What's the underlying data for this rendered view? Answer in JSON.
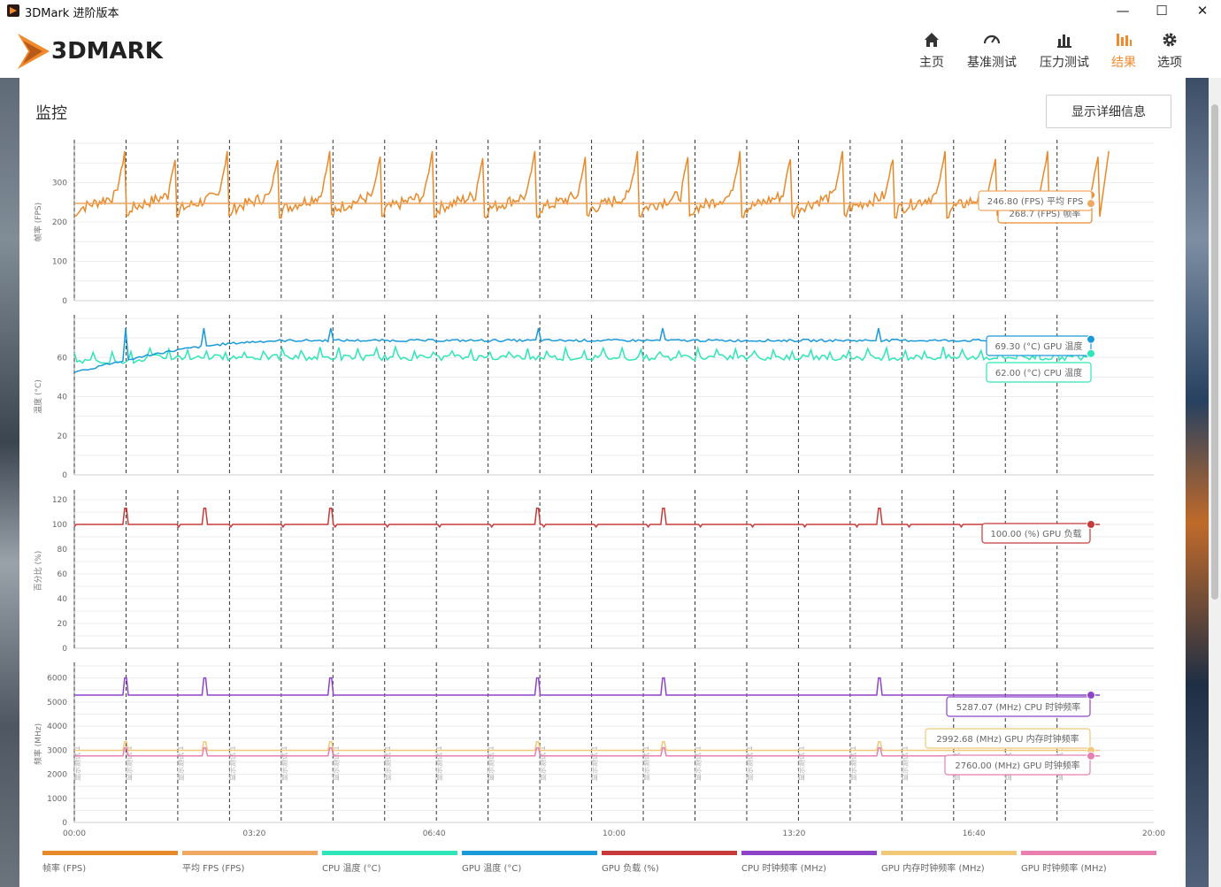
{
  "window": {
    "title": "3DMark 进阶版本",
    "minimize": "—",
    "maximize": "☐",
    "close": "✕"
  },
  "logo": {
    "text": "3DMARK"
  },
  "nav": [
    {
      "label": "主页",
      "icon": "home-icon"
    },
    {
      "label": "基准测试",
      "icon": "gauge-icon"
    },
    {
      "label": "压力测试",
      "icon": "bar-chart-icon"
    },
    {
      "label": "结果",
      "icon": "results-icon",
      "active": true
    },
    {
      "label": "选项",
      "icon": "gear-icon"
    }
  ],
  "panel": {
    "title": "监控",
    "detail_button": "显示详细信息"
  },
  "colors": {
    "fps": "#e8892a",
    "avg_fps": "#f0a860",
    "cpu_temp": "#2ee6b8",
    "gpu_temp": "#1a9ad8",
    "gpu_load": "#c83a3a",
    "cpu_clock": "#8e44c8",
    "gpu_mem_clock": "#f0c878",
    "gpu_clock": "#e87fb0"
  },
  "markers": {
    "label": "显示测试 1",
    "count": 20
  },
  "chart_data": {
    "type": "line",
    "x_ticks": [
      "00:00",
      "03:20",
      "06:40",
      "10:00",
      "13:20",
      "16:40",
      "20:00"
    ],
    "xlim_seconds": [
      0,
      1200
    ],
    "panels": [
      {
        "ylabel": "帧率 (FPS)",
        "y_ticks": [
          0,
          100,
          200,
          300
        ],
        "ylim": [
          0,
          400
        ],
        "series": [
          {
            "name": "帧率 (FPS)",
            "pattern": "sawtooth",
            "min": 210,
            "peak": 380,
            "period_s": 57,
            "base": 240
          },
          {
            "name": "平均 FPS (FPS)",
            "value": 246.8
          }
        ],
        "callouts": [
          {
            "text": "246.80 (FPS) 平均 FPS",
            "series": "avg_fps"
          },
          {
            "text": "268.7 (FPS) 帧率",
            "series": "fps"
          }
        ]
      },
      {
        "ylabel": "温度 (°C)",
        "y_ticks": [
          0,
          20,
          40,
          60
        ],
        "ylim": [
          0,
          80
        ],
        "series": [
          {
            "name": "GPU 温度 (°C)",
            "start": 52,
            "end": 69.3,
            "spike": 75
          },
          {
            "name": "CPU 温度 (°C)",
            "start": 59,
            "end": 62,
            "range": [
              60,
              71
            ]
          }
        ],
        "callouts": [
          {
            "text": "69.30 (°C) GPU 温度",
            "series": "gpu_temp"
          },
          {
            "text": "62.00 (°C) CPU 温度",
            "series": "cpu_temp"
          }
        ]
      },
      {
        "ylabel": "百分比 (%)",
        "y_ticks": [
          0,
          20,
          40,
          60,
          80,
          100,
          120
        ],
        "ylim": [
          0,
          125
        ],
        "series": [
          {
            "name": "GPU 负载 (%)",
            "value": 100,
            "spike": 113
          }
        ],
        "callouts": [
          {
            "text": "100.00 (%) GPU 负载",
            "series": "gpu_load"
          }
        ]
      },
      {
        "ylabel": "频率 (MHz)",
        "y_ticks": [
          0,
          1000,
          2000,
          3000,
          4000,
          5000,
          6000
        ],
        "ylim": [
          0,
          6500
        ],
        "series": [
          {
            "name": "CPU 时钟频率 (MHz)",
            "value": 5287.07,
            "spike": 6000
          },
          {
            "name": "GPU 内存时钟频率 (MHz)",
            "value": 2992.68,
            "spike": 3350
          },
          {
            "name": "GPU 时钟频率 (MHz)",
            "value": 2760.0,
            "spike": 3100
          }
        ],
        "callouts": [
          {
            "text": "5287.07 (MHz) CPU 时钟频率",
            "series": "cpu_clock"
          },
          {
            "text": "2992.68 (MHz) GPU 内存时钟频率",
            "series": "gpu_mem_clock"
          },
          {
            "text": "2760.00 (MHz) GPU 时钟频率",
            "series": "gpu_clock"
          }
        ]
      }
    ]
  },
  "legend": [
    {
      "label": "帧率 (FPS)",
      "color": "#e8892a"
    },
    {
      "label": "平均 FPS (FPS)",
      "color": "#f0a860"
    },
    {
      "label": "CPU 温度 (°C)",
      "color": "#2ee6b8"
    },
    {
      "label": "GPU 温度 (°C)",
      "color": "#1a9ad8"
    },
    {
      "label": "GPU 负载 (%)",
      "color": "#c83a3a"
    },
    {
      "label": "CPU 时钟频率 (MHz)",
      "color": "#8e44c8"
    },
    {
      "label": "GPU 内存时钟频率 (MHz)",
      "color": "#f0c878"
    },
    {
      "label": "GPU 时钟频率 (MHz)",
      "color": "#e87fb0"
    }
  ]
}
